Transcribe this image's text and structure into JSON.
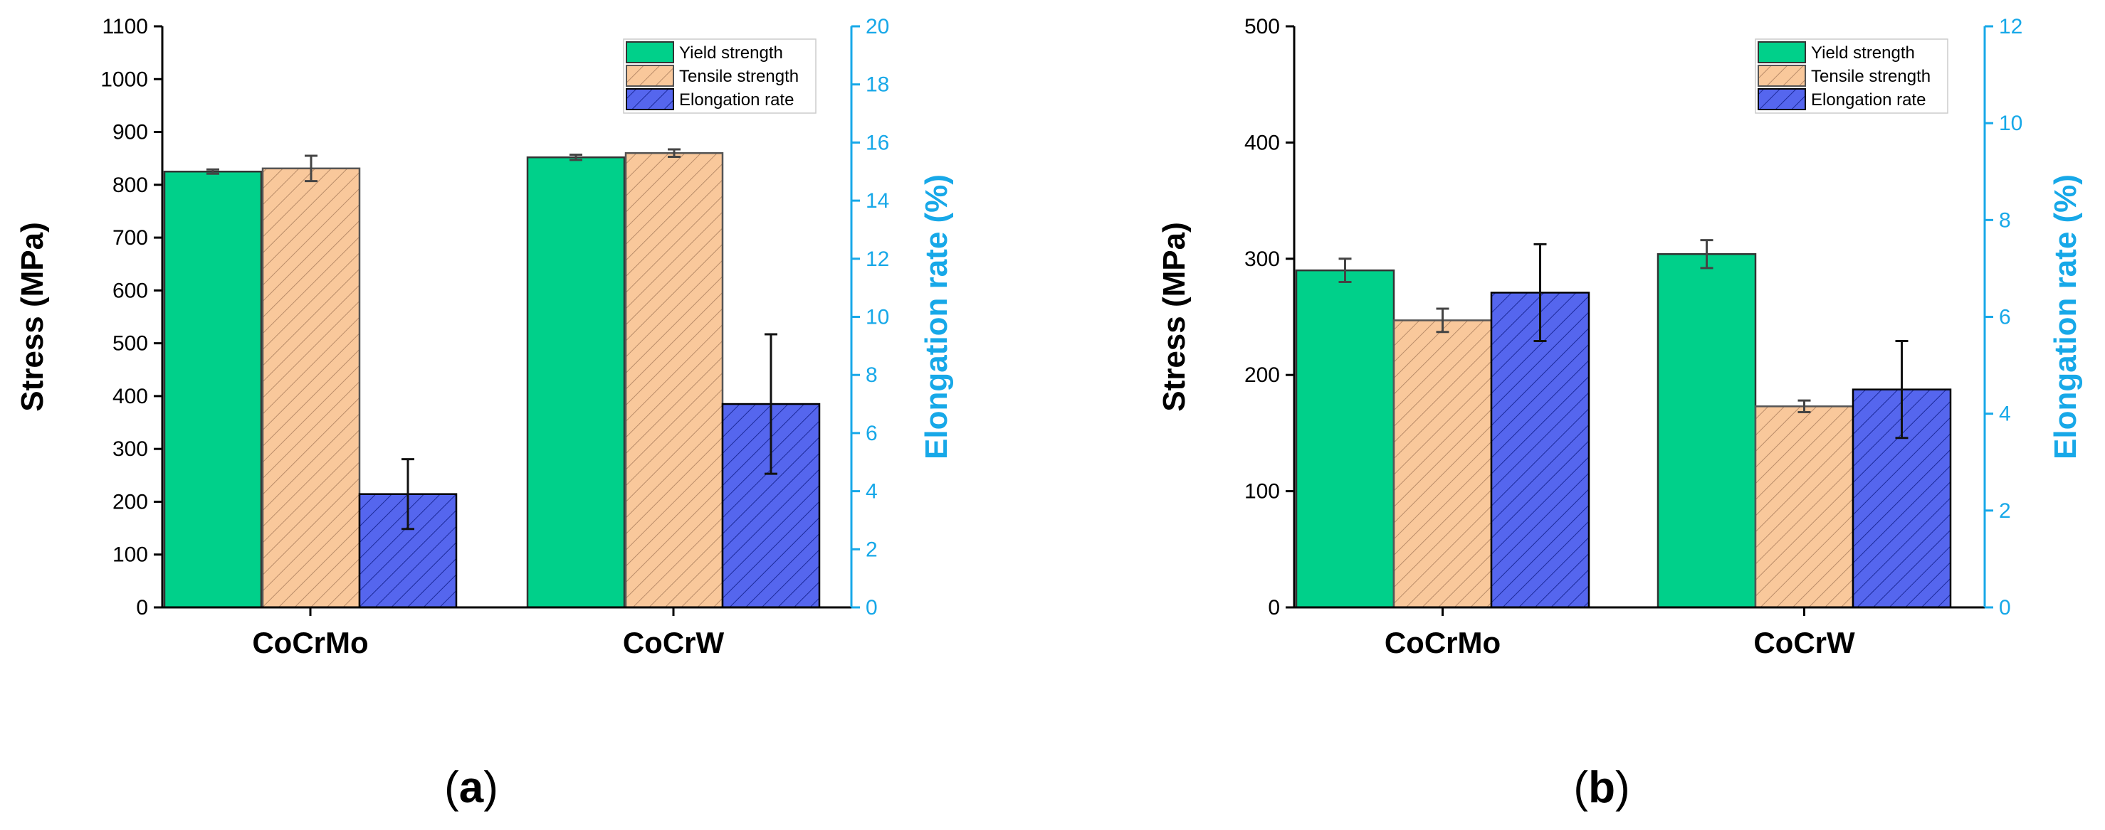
{
  "colors": {
    "yield": "#00D08A",
    "tensile": "#F9C89B",
    "tensile_hatch": "#B98C69",
    "elongation": "#5566EE",
    "elongation_hatch": "#1C2A9A",
    "right_axis": "#17A8E8",
    "axis": "#000000"
  },
  "chart_data": [
    {
      "type": "bar",
      "panel_label": "(a)",
      "caption_letter": "a",
      "categories": [
        "CoCrMo",
        "CoCrW"
      ],
      "ylabel": "Stress (MPa)",
      "ylim": [
        0,
        1100
      ],
      "yticks": [
        "0",
        "100",
        "200",
        "300",
        "400",
        "500",
        "600",
        "700",
        "800",
        "900",
        "1000",
        "1100"
      ],
      "y2label": "Elongation rate (%)",
      "y2lim": [
        0,
        20
      ],
      "y2ticks": [
        "0",
        "2",
        "4",
        "6",
        "8",
        "10",
        "12",
        "14",
        "16",
        "18",
        "20"
      ],
      "legend_position": "top-right",
      "series": [
        {
          "name": "Yield strength",
          "axis": "left",
          "values": [
            825,
            852
          ],
          "errors": [
            4,
            5
          ]
        },
        {
          "name": "Tensile strength",
          "axis": "left",
          "values": [
            831,
            860
          ],
          "errors": [
            24,
            7
          ]
        },
        {
          "name": "Elongation rate",
          "axis": "right",
          "values": [
            3.9,
            7.0
          ],
          "errors": [
            1.2,
            2.4
          ]
        }
      ]
    },
    {
      "type": "bar",
      "panel_label": "(b)",
      "caption_letter": "b",
      "categories": [
        "CoCrMo",
        "CoCrW"
      ],
      "ylabel": "Stress (MPa)",
      "ylim": [
        0,
        500
      ],
      "yticks": [
        "0",
        "100",
        "200",
        "300",
        "400",
        "500"
      ],
      "y2label": "Elongation rate (%)",
      "y2lim": [
        0,
        12
      ],
      "y2ticks": [
        "0",
        "2",
        "4",
        "6",
        "8",
        "10",
        "12"
      ],
      "legend_position": "top-right",
      "series": [
        {
          "name": "Yield strength",
          "axis": "left",
          "values": [
            290,
            304
          ],
          "errors": [
            10,
            12
          ]
        },
        {
          "name": "Tensile strength",
          "axis": "left",
          "values": [
            247,
            173
          ],
          "errors": [
            10,
            5
          ]
        },
        {
          "name": "Elongation rate",
          "axis": "right",
          "values": [
            6.5,
            4.5
          ],
          "errors": [
            1.0,
            1.0
          ]
        }
      ]
    }
  ]
}
